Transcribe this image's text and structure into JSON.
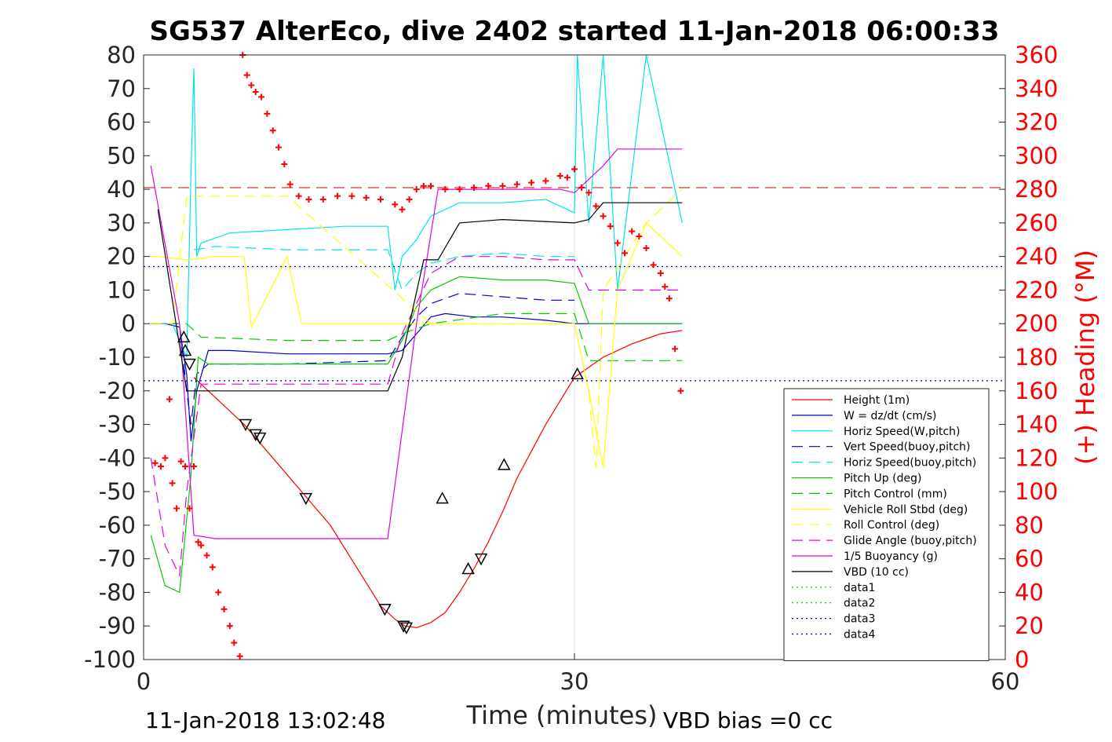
{
  "chart_data": {
    "type": "line",
    "title": "SG537 AlterEco, dive 2402 started 11-Jan-2018 06:00:33",
    "xlabel": "Time (minutes)",
    "ylabel": "",
    "ylabel_right": "(+) Heading (°M)",
    "xlim": [
      0,
      60
    ],
    "ylim": [
      -100,
      80
    ],
    "ylim_right": [
      0,
      360
    ],
    "x_ticks": [
      "0",
      "30",
      "60"
    ],
    "y_ticks": [
      "80",
      "70",
      "60",
      "50",
      "40",
      "30",
      "20",
      "10",
      "0",
      "-10",
      "-20",
      "-30",
      "-40",
      "-50",
      "-60",
      "-70",
      "-80",
      "-90",
      "-100"
    ],
    "y_ticks_right": [
      "360",
      "340",
      "320",
      "300",
      "280",
      "260",
      "240",
      "220",
      "200",
      "180",
      "160",
      "140",
      "120",
      "100",
      "80",
      "60",
      "40",
      "20",
      "0"
    ],
    "footer_left": "11-Jan-2018 13:02:48",
    "footer_right": "VBD bias =0 cc",
    "grid": "x at 30 only",
    "legend_position": "bottom-right",
    "series": [
      {
        "name": "Height (1m)",
        "color": "#ff0000",
        "style": "solid",
        "x": [
          3.5,
          7,
          10,
          13,
          16.5,
          17.5,
          18.2,
          19,
          20,
          21,
          22,
          23,
          24,
          25,
          26,
          27,
          28,
          29,
          30,
          31,
          32,
          33,
          34,
          35,
          36,
          37.5
        ],
        "y": [
          -16,
          -30,
          -45,
          -60,
          -84,
          -88,
          -90,
          -90.5,
          -89,
          -86,
          -80,
          -73,
          -65,
          -56,
          -46,
          -38,
          -30,
          -23,
          -16,
          -13,
          -10,
          -8,
          -6,
          -4.5,
          -3,
          -2
        ]
      },
      {
        "name": "W = dz/dt (cm/s)",
        "color": "#0000cc",
        "style": "solid",
        "x": [
          0.5,
          1.5,
          2.5,
          3,
          3.3,
          3.7,
          4.5,
          6,
          10,
          14,
          17,
          18,
          19,
          20,
          21,
          23,
          25,
          28,
          30,
          31,
          32,
          35,
          37.5
        ],
        "y": [
          0,
          0,
          -1,
          -15,
          -35,
          -20,
          -8,
          -8,
          -9,
          -9,
          -9,
          -8,
          -3,
          2,
          3,
          2,
          2,
          1,
          0,
          0,
          0,
          0,
          0
        ]
      },
      {
        "name": "Horiz Speed(W,pitch)",
        "color": "#00e5e5",
        "style": "solid",
        "x": [
          0.5,
          2,
          3,
          3.3,
          3.5,
          3.7,
          4,
          6,
          10,
          14,
          17,
          17.5,
          18,
          19,
          20,
          22,
          25,
          28,
          30,
          30.2,
          31,
          32,
          33,
          35,
          37.5
        ],
        "y": [
          0,
          0,
          -10,
          45,
          76,
          20,
          24,
          27,
          28,
          29,
          29,
          10,
          20,
          25,
          32,
          36,
          36,
          37,
          33,
          80,
          30,
          80,
          10,
          80,
          30
        ]
      },
      {
        "name": "Vert Speed(buoy,pitch)",
        "color": "#0000cc",
        "style": "dash",
        "x": [
          0.5,
          2.5,
          3,
          3.3,
          3.7,
          4.5,
          10,
          17,
          18,
          19,
          20,
          22,
          25,
          28,
          30
        ],
        "y": [
          0,
          0,
          -20,
          -30,
          -15,
          -12,
          -12,
          -11,
          -4,
          2,
          6,
          9,
          8,
          7,
          7
        ]
      },
      {
        "name": "Horiz Speed(buoy,pitch)",
        "color": "#00e5e5",
        "style": "dash",
        "x": [
          3.5,
          5,
          10,
          17,
          18,
          19,
          20,
          22,
          25,
          28,
          30
        ],
        "y": [
          22,
          23,
          22,
          22,
          10,
          15,
          18,
          20,
          21,
          20,
          20
        ]
      },
      {
        "name": "Pitch Up (deg)",
        "color": "#00cc00",
        "style": "solid",
        "x": [
          0.5,
          1.5,
          2.5,
          3.3,
          3.8,
          4.5,
          7,
          10,
          17,
          18,
          19,
          20,
          22,
          25,
          28,
          30,
          31,
          33,
          35,
          37.5
        ],
        "y": [
          -63,
          -78,
          -80,
          -45,
          -10,
          -12,
          -12,
          -12,
          -12,
          -5,
          5,
          10,
          14,
          13,
          13,
          12,
          0,
          0,
          0,
          0
        ]
      },
      {
        "name": "Pitch Control (mm)",
        "color": "#00cc00",
        "style": "dash",
        "x": [
          0.5,
          3,
          4,
          10,
          17,
          18,
          20,
          25,
          30,
          31,
          37.5
        ],
        "y": [
          0,
          0,
          -4,
          -5,
          -5,
          -3,
          0,
          3,
          3,
          -11,
          -11
        ]
      },
      {
        "name": "Vehicle Roll Stbd (deg)",
        "color": "#ffff00",
        "style": "solid",
        "x": [
          0.5,
          1,
          3,
          5,
          7,
          7.5,
          10,
          11,
          15,
          17,
          20,
          25,
          30,
          31,
          32,
          33,
          35,
          37.5
        ],
        "y": [
          20,
          20,
          19,
          20,
          20,
          -1,
          20,
          0,
          0,
          0,
          0,
          0,
          0,
          -20,
          -43,
          10,
          30,
          20
        ]
      },
      {
        "name": "Roll Control (deg)",
        "color": "#ffff00",
        "style": "dash",
        "x": [
          0.5,
          2,
          3,
          3.5,
          10,
          20,
          25,
          30,
          31,
          31.5,
          32,
          35,
          37.5
        ],
        "y": [
          0,
          0,
          38,
          38,
          38,
          0,
          0,
          0,
          -20,
          -43,
          10,
          30,
          40
        ]
      },
      {
        "name": "Glide Angle (buoy,pitch)",
        "color": "#e600e6",
        "style": "dash",
        "x": [
          0.5,
          1.5,
          2.5,
          3,
          4,
          10,
          17,
          18,
          20,
          22,
          25,
          28,
          30,
          31,
          37.5
        ],
        "y": [
          -40,
          -66,
          -75,
          -50,
          -18,
          -18,
          -18,
          -3,
          15,
          20,
          20,
          19,
          19,
          10,
          10
        ]
      },
      {
        "name": "1/5 Buoyancy (g)",
        "color": "#e600e6",
        "style": "solid",
        "x": [
          0.5,
          2.5,
          3.5,
          5,
          10,
          17,
          19,
          20.5,
          25,
          29,
          30,
          31,
          32,
          33,
          37.5
        ],
        "y": [
          47,
          0,
          -63,
          -64,
          -64,
          -64,
          0,
          40,
          40,
          40,
          39,
          43,
          47,
          52,
          52
        ]
      },
      {
        "name": "VBD (10 cc)",
        "color": "#000000",
        "style": "solid",
        "x": [
          1,
          3,
          3.5,
          5,
          10,
          17,
          18,
          19.5,
          20.5,
          22,
          25,
          30,
          31,
          32,
          37.5
        ],
        "y": [
          34,
          -20,
          -20,
          -20,
          -20,
          -20,
          -10,
          19,
          19,
          30,
          31,
          30,
          31,
          36,
          36
        ]
      },
      {
        "name": "data1",
        "color": "#00cc00",
        "style": "dot",
        "x": [
          0,
          0
        ],
        "y": [
          0,
          0
        ]
      },
      {
        "name": "data2",
        "color": "#00cc00",
        "style": "dot",
        "x": [
          0,
          0
        ],
        "y": [
          0,
          0
        ]
      },
      {
        "name": "data3",
        "color": "#000099",
        "style": "dot",
        "x": [
          0,
          60
        ],
        "y": [
          17,
          17
        ]
      },
      {
        "name": "data4",
        "color": "#000099",
        "style": "dot",
        "x": [
          0,
          60
        ],
        "y": [
          -17,
          -17
        ]
      }
    ],
    "reference_lines": [
      {
        "y": 40.5,
        "color": "#cc0000",
        "style": "dash"
      }
    ],
    "heading": {
      "color": "#ff0000",
      "marker": "+",
      "x": [
        0.8,
        1.2,
        1.5,
        1.8,
        2.0,
        2.3,
        2.6,
        2.9,
        3.2,
        3.5,
        3.8,
        4.0,
        4.4,
        4.8,
        5.2,
        5.6,
        6.0,
        6.3,
        6.7,
        6.9,
        7.2,
        7.5,
        7.8,
        8.2,
        8.6,
        9.0,
        9.4,
        9.8,
        10.2,
        10.8,
        11.5,
        12.5,
        13.5,
        14.5,
        15.5,
        16.5,
        17.5,
        18.0,
        18.5,
        19.0,
        19.5,
        20.0,
        21.0,
        22.0,
        23.0,
        24.0,
        25.0,
        26.0,
        27.0,
        28.0,
        29.0,
        29.5,
        30.0,
        30.5,
        31.0,
        31.5,
        32.0,
        32.5,
        33.0,
        33.5,
        34.0,
        34.5,
        35.0,
        35.5,
        36.0,
        36.3,
        36.6,
        37.0,
        37.4
      ],
      "y": [
        117,
        115,
        120,
        155,
        105,
        90,
        118,
        115,
        90,
        115,
        70,
        68,
        62,
        55,
        40,
        30,
        20,
        10,
        2,
        360,
        348,
        342,
        338,
        335,
        325,
        315,
        305,
        295,
        283,
        276,
        274,
        274,
        276,
        276,
        275,
        274,
        271,
        268,
        274,
        280,
        282,
        282,
        280,
        280,
        281,
        282,
        282,
        283,
        284,
        285,
        288,
        287,
        292,
        281,
        278,
        270,
        264,
        258,
        248,
        242,
        255,
        252,
        245,
        235,
        230,
        222,
        215,
        185,
        160
      ]
    },
    "triangle_markers": {
      "up_x": [
        2.8,
        2.9,
        20.8,
        22.6,
        25.1,
        30.2
      ],
      "up_y": [
        -4,
        -8,
        -52,
        -73,
        -42,
        -15
      ],
      "down_x": [
        3.2,
        7.1,
        7.8,
        8.1,
        11.3,
        16.8,
        18.1,
        18.3,
        23.5
      ],
      "down_y": [
        -12,
        -30,
        -33,
        -34,
        -52,
        -85,
        -90,
        -90.5,
        -70
      ]
    }
  }
}
